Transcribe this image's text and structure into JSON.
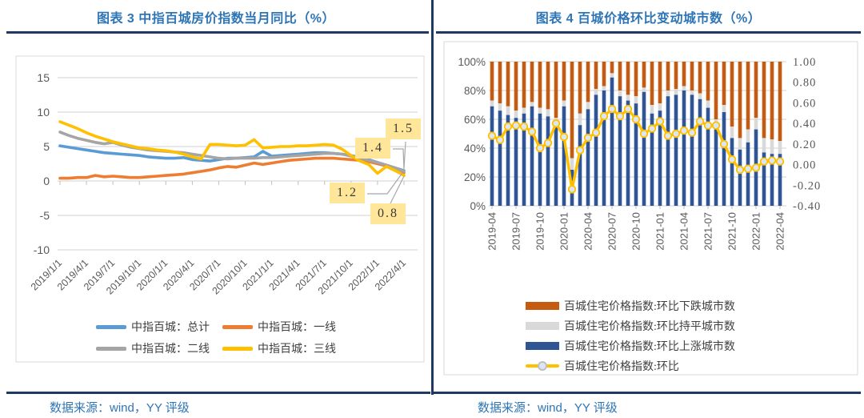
{
  "page": {
    "background": "#FFFFFF",
    "divider_color": "#1F3864",
    "title_color": "#2E75B6",
    "source_color": "#2E75B6"
  },
  "left_panel": {
    "title": "图表 3 中指百城房价指数当月同比（%）",
    "source": "数据来源：wind，YY 评级"
  },
  "right_panel": {
    "title": "图表 4 百城价格环比变动城市数（%）",
    "source": "数据来源：wind，YY 评级"
  },
  "chart_data": [
    {
      "id": "zhongzhi-yoy-line",
      "type": "line",
      "title": "图表 3 中指百城房价指数当月同比（%）",
      "xlabel": "",
      "ylabel": "",
      "ylim": [
        -10,
        15
      ],
      "y_ticks": [
        15,
        10,
        5,
        0,
        -5,
        -10
      ],
      "grid": true,
      "legend_position": "bottom",
      "x_months": [
        "2019/1/1",
        "2019/2/1",
        "2019/3/1",
        "2019/4/1",
        "2019/5/1",
        "2019/6/1",
        "2019/7/1",
        "2019/8/1",
        "2019/9/1",
        "2019/10/1",
        "2019/11/1",
        "2019/12/1",
        "2020/1/1",
        "2020/2/1",
        "2020/3/1",
        "2020/4/1",
        "2020/5/1",
        "2020/6/1",
        "2020/7/1",
        "2020/8/1",
        "2020/9/1",
        "2020/10/1",
        "2020/11/1",
        "2020/12/1",
        "2021/1/1",
        "2021/2/1",
        "2021/3/1",
        "2021/4/1",
        "2021/5/1",
        "2021/6/1",
        "2021/7/1",
        "2021/8/1",
        "2021/9/1",
        "2021/10/1",
        "2021/11/1",
        "2021/12/1",
        "2022/1/1",
        "2022/2/1",
        "2022/3/1",
        "2022/4/1"
      ],
      "x_tick_labels": [
        "2019/1/1",
        "2019/4/1",
        "2019/7/1",
        "2019/10/1",
        "2020/1/1",
        "2020/4/1",
        "2020/7/1",
        "2020/10/1",
        "2021/1/1",
        "2021/4/1",
        "2021/7/1",
        "2021/10/1",
        "2022/1/1",
        "2022/4/1"
      ],
      "series": [
        {
          "name": "中指百城：总计",
          "color": "#5B9BD5",
          "values": [
            5.1,
            4.9,
            4.7,
            4.5,
            4.3,
            4.1,
            4.0,
            3.9,
            3.8,
            3.7,
            3.5,
            3.4,
            3.3,
            3.3,
            3.4,
            3.1,
            3.0,
            2.9,
            3.1,
            3.3,
            3.3,
            3.4,
            3.5,
            4.3,
            3.6,
            3.7,
            3.8,
            3.9,
            4.0,
            4.1,
            4.1,
            4.0,
            3.9,
            3.7,
            3.4,
            3.1,
            2.7,
            2.3,
            1.9,
            1.5
          ]
        },
        {
          "name": "中指百城：一线",
          "color": "#ED7D31",
          "values": [
            0.4,
            0.4,
            0.5,
            0.5,
            0.8,
            0.6,
            0.7,
            0.6,
            0.5,
            0.5,
            0.6,
            0.7,
            0.8,
            0.9,
            1.0,
            1.2,
            1.4,
            1.6,
            1.9,
            2.1,
            2.0,
            2.3,
            2.6,
            2.4,
            2.6,
            2.8,
            3.0,
            3.1,
            3.2,
            3.3,
            3.3,
            3.3,
            3.2,
            3.1,
            3.0,
            2.8,
            2.5,
            2.2,
            1.8,
            1.2
          ]
        },
        {
          "name": "中指百城：二线",
          "color": "#A5A5A5",
          "values": [
            7.1,
            6.6,
            6.2,
            5.9,
            5.6,
            5.4,
            5.6,
            5.2,
            4.9,
            4.7,
            4.5,
            4.4,
            4.3,
            4.2,
            4.1,
            3.9,
            3.7,
            3.5,
            3.3,
            3.2,
            3.3,
            3.3,
            3.3,
            3.4,
            3.4,
            3.5,
            3.6,
            3.7,
            3.8,
            3.9,
            4.0,
            4.0,
            3.9,
            3.6,
            3.3,
            3.0,
            2.7,
            2.3,
            1.9,
            1.4
          ]
        },
        {
          "name": "中指百城：三线",
          "color": "#FFC000",
          "values": [
            8.6,
            8.1,
            7.6,
            7.0,
            6.5,
            6.1,
            5.7,
            5.4,
            5.1,
            4.8,
            4.7,
            4.5,
            4.4,
            4.2,
            3.9,
            3.5,
            3.2,
            5.3,
            5.3,
            5.2,
            5.1,
            5.2,
            6.0,
            4.8,
            4.9,
            5.0,
            5.0,
            5.1,
            5.1,
            5.2,
            5.3,
            5.2,
            4.6,
            3.7,
            2.9,
            2.4,
            1.1,
            2.1,
            1.5,
            0.8
          ]
        }
      ],
      "end_labels": [
        {
          "text": "1.5",
          "series": "中指百城：总计"
        },
        {
          "text": "1.4",
          "series": "中指百城：二线"
        },
        {
          "text": "1.2",
          "series": "中指百城：一线"
        },
        {
          "text": "0.8",
          "series": "中指百城：三线"
        }
      ],
      "label_box_color": "#FFE699"
    },
    {
      "id": "baicheng-mom-cities",
      "type": "stacked-bar-with-line",
      "title": "图表 4 百城价格环比变动城市数（%）",
      "grid": true,
      "legend_position": "bottom",
      "left_axis": {
        "lim": [
          0,
          100
        ],
        "ticks": [
          "100%",
          "80%",
          "60%",
          "40%",
          "20%",
          "0%"
        ]
      },
      "right_axis": {
        "lim": [
          -0.4,
          1.0
        ],
        "ticks": [
          "1.00",
          "0.80",
          "0.60",
          "0.40",
          "0.20",
          "0.00",
          "-0.20",
          "-0.40"
        ]
      },
      "x_months": [
        "2019-04",
        "2019-05",
        "2019-06",
        "2019-07",
        "2019-08",
        "2019-09",
        "2019-10",
        "2019-11",
        "2019-12",
        "2020-01",
        "2020-02",
        "2020-03",
        "2020-04",
        "2020-05",
        "2020-06",
        "2020-07",
        "2020-08",
        "2020-09",
        "2020-10",
        "2020-11",
        "2020-12",
        "2021-01",
        "2021-02",
        "2021-03",
        "2021-04",
        "2021-05",
        "2021-06",
        "2021-07",
        "2021-08",
        "2021-09",
        "2021-10",
        "2021-11",
        "2021-12",
        "2022-01",
        "2022-02",
        "2022-03",
        "2022-04"
      ],
      "x_tick_labels": [
        "2019-04",
        "2019-07",
        "2019-10",
        "2020-01",
        "2020-04",
        "2020-07",
        "2020-10",
        "2021-01",
        "2021-04",
        "2021-07",
        "2021-10",
        "2022-01",
        "2022-04"
      ],
      "bar_series": [
        {
          "name": "百城住宅价格指数:环比下跌城市数",
          "color": "#C55A11",
          "values": [
            27,
            29,
            31,
            34,
            32,
            28,
            32,
            33,
            39,
            27,
            67,
            36,
            28,
            19,
            17,
            8,
            20,
            23,
            24,
            18,
            30,
            29,
            20,
            19,
            17,
            20,
            22,
            27,
            40,
            30,
            45,
            53,
            47,
            39,
            53,
            54,
            55
          ]
        },
        {
          "name": "百城住宅价格指数:环比持平城市数",
          "color": "#D9D9D9",
          "values": [
            4,
            5,
            6,
            5,
            4,
            3,
            4,
            5,
            6,
            4,
            8,
            8,
            5,
            4,
            3,
            3,
            4,
            4,
            5,
            3,
            6,
            5,
            4,
            4,
            3,
            3,
            4,
            5,
            7,
            5,
            8,
            8,
            9,
            8,
            10,
            10,
            9
          ]
        },
        {
          "name": "百城住宅价格指数:环比上涨城市数",
          "color": "#2F5597",
          "values": [
            69,
            66,
            63,
            61,
            64,
            69,
            64,
            62,
            55,
            69,
            25,
            56,
            67,
            77,
            80,
            89,
            76,
            73,
            71,
            79,
            64,
            66,
            76,
            77,
            80,
            77,
            74,
            68,
            53,
            65,
            47,
            39,
            44,
            53,
            37,
            36,
            36
          ]
        }
      ],
      "line_series": {
        "name": "百城住宅价格指数:环比",
        "color": "#FFC000",
        "marker_fill": "#DCE6F2",
        "values": [
          0.28,
          0.24,
          0.37,
          0.38,
          0.37,
          0.32,
          0.16,
          0.21,
          0.4,
          0.27,
          -0.24,
          0.14,
          0.26,
          0.31,
          0.47,
          0.54,
          0.47,
          0.54,
          0.44,
          0.3,
          0.35,
          0.42,
          0.28,
          0.3,
          0.33,
          0.31,
          0.42,
          0.38,
          0.38,
          0.2,
          0.05,
          -0.05,
          -0.04,
          -0.03,
          0.03,
          0.04,
          0.03
        ]
      }
    }
  ]
}
